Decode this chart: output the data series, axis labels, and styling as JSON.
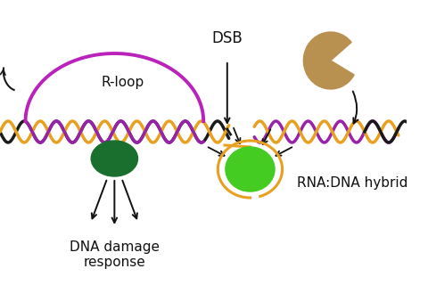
{
  "bg_color": "#ffffff",
  "dna_black": "#1a1a1a",
  "dna_orange": "#e8a020",
  "dna_purple": "#9922aa",
  "rloop_arc_color": "#bb22bb",
  "dark_green": "#1a6e2e",
  "light_green": "#44cc22",
  "tan_color": "#b89050",
  "arrow_color": "#111111",
  "text_color": "#111111",
  "label_rloop": "R-loop",
  "label_dsb": "DSB",
  "label_rna_dna": "RNA:DNA hybrid",
  "label_dna_damage": "DNA damage\nresponse",
  "label_fontsize": 11
}
